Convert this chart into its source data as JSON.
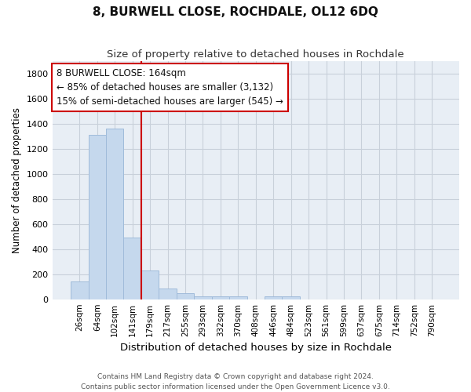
{
  "title": "8, BURWELL CLOSE, ROCHDALE, OL12 6DQ",
  "subtitle": "Size of property relative to detached houses in Rochdale",
  "xlabel": "Distribution of detached houses by size in Rochdale",
  "ylabel": "Number of detached properties",
  "bar_color": "#c5d8ed",
  "bar_edge_color": "#a0bbda",
  "categories": [
    "26sqm",
    "64sqm",
    "102sqm",
    "141sqm",
    "179sqm",
    "217sqm",
    "255sqm",
    "293sqm",
    "332sqm",
    "370sqm",
    "408sqm",
    "446sqm",
    "484sqm",
    "523sqm",
    "561sqm",
    "599sqm",
    "637sqm",
    "675sqm",
    "714sqm",
    "752sqm",
    "790sqm"
  ],
  "values": [
    140,
    1310,
    1360,
    490,
    230,
    85,
    50,
    25,
    20,
    20,
    0,
    20,
    20,
    0,
    0,
    0,
    0,
    0,
    0,
    0,
    0
  ],
  "ylim": [
    0,
    1900
  ],
  "yticks": [
    0,
    200,
    400,
    600,
    800,
    1000,
    1200,
    1400,
    1600,
    1800
  ],
  "vline_x": 3.5,
  "vline_color": "#cc0000",
  "annotation_title": "8 BURWELL CLOSE: 164sqm",
  "annotation_line1": "← 85% of detached houses are smaller (3,132)",
  "annotation_line2": "15% of semi-detached houses are larger (545) →",
  "annotation_box_facecolor": "#ffffff",
  "annotation_box_edgecolor": "#cc0000",
  "footer1": "Contains HM Land Registry data © Crown copyright and database right 2024.",
  "footer2": "Contains public sector information licensed under the Open Government Licence v3.0.",
  "plot_bg_color": "#e8eef5",
  "grid_color": "#c8d0da"
}
